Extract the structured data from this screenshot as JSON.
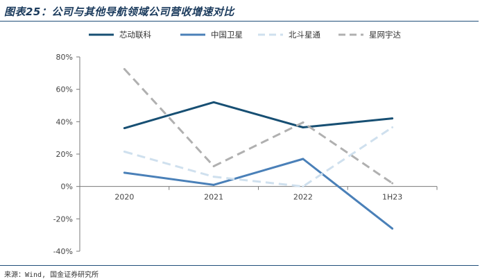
{
  "header": {
    "title": "图表25：公司与其他导航领域公司营收增速对比"
  },
  "footer": {
    "source": "来源：Wind, 国金证券研究所"
  },
  "chart_data": {
    "type": "line",
    "categories": [
      "2020",
      "2021",
      "2022",
      "1H23"
    ],
    "ylim": [
      -0.4,
      0.8
    ],
    "yticks": [
      -0.4,
      -0.2,
      0,
      0.2,
      0.4,
      0.6,
      0.8
    ],
    "ytick_labels": [
      "-40%",
      "-20%",
      "0%",
      "20%",
      "40%",
      "60%",
      "80%"
    ],
    "grid": false,
    "legend_position": "top",
    "series": [
      {
        "name": "芯动联科",
        "values": [
          0.36,
          0.52,
          0.365,
          0.42
        ],
        "color": "#174f73",
        "dash": "solid"
      },
      {
        "name": "中国卫星",
        "values": [
          0.085,
          0.01,
          0.17,
          -0.26
        ],
        "color": "#4a80b8",
        "dash": "solid"
      },
      {
        "name": "北斗星通",
        "values": [
          0.215,
          0.06,
          0.0,
          0.365
        ],
        "color": "#cfe0ee",
        "dash": "dashed"
      },
      {
        "name": "星网宇达",
        "values": [
          0.725,
          0.125,
          0.395,
          0.02
        ],
        "color": "#b0b0b0",
        "dash": "dashed"
      }
    ]
  }
}
